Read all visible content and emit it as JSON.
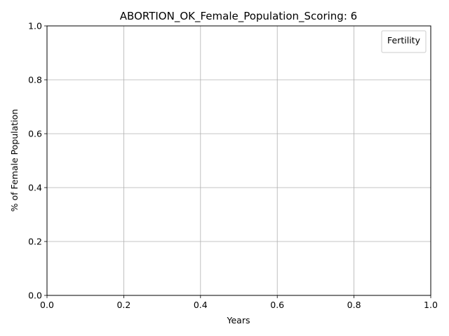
{
  "chart_data": {
    "type": "line",
    "title": "ABORTION_OK_Female_Population_Scoring: 6",
    "xlabel": "Years",
    "ylabel": "% of Female Population",
    "xlim": [
      0.0,
      1.0
    ],
    "ylim": [
      0.0,
      1.0
    ],
    "x_ticks": [
      "0.0",
      "0.2",
      "0.4",
      "0.6",
      "0.8",
      "1.0"
    ],
    "y_ticks": [
      "0.0",
      "0.2",
      "0.4",
      "0.6",
      "0.8",
      "1.0"
    ],
    "grid": true,
    "legend": {
      "title": "Fertility",
      "placement": "top-right",
      "entries": []
    },
    "series": []
  }
}
